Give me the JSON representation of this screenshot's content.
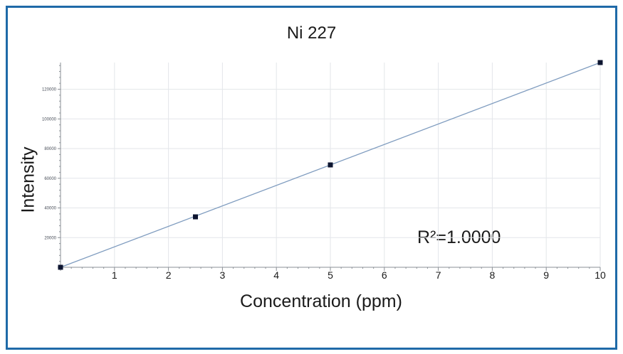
{
  "chart_data": {
    "type": "scatter",
    "title": "Ni 227",
    "xlabel": "Concentration (ppm)",
    "ylabel": "Intensity",
    "annotation": "R²=1.0000",
    "xlim": [
      0,
      10
    ],
    "ylim": [
      0,
      138000
    ],
    "x_ticks": [
      1,
      2,
      3,
      4,
      5,
      6,
      7,
      8,
      9,
      10
    ],
    "x_tick_labels": [
      "1",
      "2",
      "3",
      "4",
      "5",
      "6",
      "7",
      "8",
      "9",
      "10"
    ],
    "y_ticks": [
      20000,
      40000,
      60000,
      80000,
      100000,
      120000
    ],
    "y_tick_labels": [
      "20000",
      "40000",
      "60000",
      "80000",
      "100000",
      "120000"
    ],
    "grid": true,
    "series": [
      {
        "points": [
          {
            "x": 0,
            "y": 0
          },
          {
            "x": 2.5,
            "y": 34000
          },
          {
            "x": 5,
            "y": 69000
          },
          {
            "x": 10,
            "y": 138000
          }
        ],
        "fit_line": {
          "x": [
            0,
            10
          ],
          "y": [
            0,
            138000
          ]
        }
      }
    ],
    "colors": {
      "frame": "#1f6aa8",
      "line": "#7f9cbf",
      "marker": "#0d1530",
      "grid": "#e3e6ea",
      "axis": "#8a8f96"
    }
  }
}
